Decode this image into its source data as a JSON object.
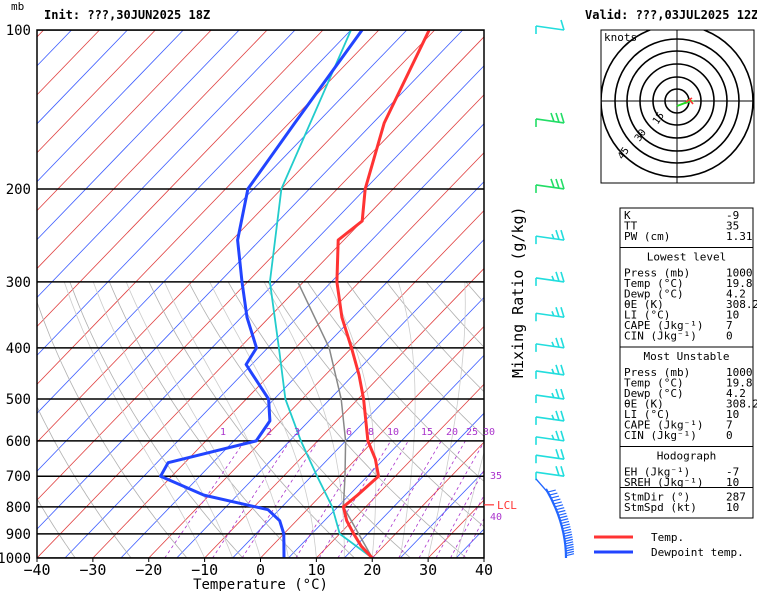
{
  "header": {
    "unit_label": "mb",
    "init": "Init: ???,30JUN2025 18Z",
    "valid": "Valid: ???,03JUL2025 12Z"
  },
  "chart_data": {
    "type": "line",
    "subtype": "skew-t log-p sounding",
    "xlabel": "Temperature (°C)",
    "ylabel": "mb",
    "pressure_levels": [
      100,
      200,
      300,
      400,
      500,
      600,
      700,
      800,
      900,
      1000
    ],
    "temperature_ticks": [
      -40,
      -30,
      -20,
      -10,
      0,
      10,
      20,
      30,
      40
    ],
    "xlim": [
      -40,
      40
    ],
    "ylim": [
      1000,
      100
    ],
    "y_scale": "log",
    "mixing_ratio": {
      "label": "Mixing Ratio (g/kg)",
      "values": [
        "1",
        "2",
        "3",
        "6",
        "8",
        "10",
        "15",
        "20",
        "25",
        "30",
        "35",
        "40"
      ]
    },
    "lcl_label": "LCL",
    "lcl_pressure": 800,
    "series": [
      {
        "name": "Temp.",
        "color": "#ff3333",
        "points": [
          [
            1000,
            20
          ],
          [
            950,
            16
          ],
          [
            900,
            12.5
          ],
          [
            850,
            9
          ],
          [
            800,
            6
          ],
          [
            760,
            6.5
          ],
          [
            700,
            7
          ],
          [
            650,
            3.5
          ],
          [
            600,
            -1
          ],
          [
            500,
            -9
          ],
          [
            450,
            -14
          ],
          [
            400,
            -20
          ],
          [
            350,
            -27
          ],
          [
            300,
            -34
          ],
          [
            250,
            -41
          ],
          [
            230,
            -40
          ],
          [
            200,
            -45
          ],
          [
            150,
            -53
          ],
          [
            100,
            -61
          ]
        ]
      },
      {
        "name": "Dewpoint temp.",
        "color": "#2244ff",
        "points": [
          [
            1000,
            4.2
          ],
          [
            900,
            0
          ],
          [
            850,
            -3
          ],
          [
            810,
            -7
          ],
          [
            760,
            -21
          ],
          [
            700,
            -32
          ],
          [
            660,
            -33
          ],
          [
            600,
            -21
          ],
          [
            550,
            -22
          ],
          [
            500,
            -26
          ],
          [
            450,
            -33
          ],
          [
            430,
            -36
          ],
          [
            400,
            -37
          ],
          [
            350,
            -44
          ],
          [
            300,
            -51
          ],
          [
            250,
            -59
          ],
          [
            200,
            -66
          ],
          [
            150,
            -69
          ],
          [
            100,
            -73
          ]
        ]
      }
    ],
    "parcel": {
      "name": "Parcel",
      "color": "#888888",
      "points": [
        [
          1000,
          20
        ],
        [
          800,
          6
        ],
        [
          700,
          1
        ],
        [
          600,
          -5
        ],
        [
          500,
          -13
        ],
        [
          400,
          -24
        ],
        [
          300,
          -41
        ]
      ]
    },
    "wind_barbs": [
      {
        "p": 100,
        "spd": 10,
        "color": "#22dddd"
      },
      {
        "p": 150,
        "spd": 30,
        "color": "#22dd66"
      },
      {
        "p": 200,
        "spd": 30,
        "color": "#22dd66"
      },
      {
        "p": 250,
        "spd": 15,
        "color": "#22dddd"
      },
      {
        "p": 300,
        "spd": 15,
        "color": "#22dddd"
      },
      {
        "p": 350,
        "spd": 15,
        "color": "#22dddd"
      },
      {
        "p": 400,
        "spd": 15,
        "color": "#22dddd"
      },
      {
        "p": 450,
        "spd": 15,
        "color": "#22dddd"
      },
      {
        "p": 500,
        "spd": 15,
        "color": "#22dddd"
      },
      {
        "p": 550,
        "spd": 15,
        "color": "#22dddd"
      },
      {
        "p": 600,
        "spd": 15,
        "color": "#22dddd"
      },
      {
        "p": 650,
        "spd": 20,
        "color": "#22dddd"
      },
      {
        "p": 700,
        "spd": 20,
        "color": "#22dddd"
      }
    ],
    "lower_barbs_color": "#2266ff"
  },
  "hodograph": {
    "title": "knots",
    "ring_labels": [
      "15",
      "30",
      "45"
    ],
    "trace_color": "#22dd22",
    "storm_color": "#ff3333"
  },
  "stats": {
    "top": [
      {
        "label": "K",
        "value": "-9"
      },
      {
        "label": "TT",
        "value": "35"
      },
      {
        "label": "PW (cm)",
        "value": "1.31"
      }
    ],
    "lowest_title": "Lowest level",
    "lowest": [
      {
        "label": "Press (mb)",
        "value": "1000"
      },
      {
        "label": "Temp (°C)",
        "value": "19.8"
      },
      {
        "label": "Dewp (°C)",
        "value": "4.2"
      },
      {
        "label": "θE (K)",
        "value": "308.2"
      },
      {
        "label": "LI (°C)",
        "value": "10"
      },
      {
        "label": "CAPE (Jkg⁻¹)",
        "value": "7"
      },
      {
        "label": "CIN (Jkg⁻¹)",
        "value": "0"
      }
    ],
    "unstable_title": "Most Unstable",
    "unstable": [
      {
        "label": "Press (mb)",
        "value": "1000"
      },
      {
        "label": "Temp (°C)",
        "value": "19.8"
      },
      {
        "label": "Dewp (°C)",
        "value": "4.2"
      },
      {
        "label": "θE (K)",
        "value": "308.2"
      },
      {
        "label": "LI (°C)",
        "value": "10"
      },
      {
        "label": "CAPE (Jkg⁻¹)",
        "value": "7"
      },
      {
        "label": "CIN (Jkg⁻¹)",
        "value": "0"
      }
    ],
    "hodo_title": "Hodograph",
    "hodo": [
      {
        "label": "EH (Jkg⁻¹)",
        "value": "-7"
      },
      {
        "label": "SREH (Jkg⁻¹)",
        "value": "10"
      },
      {
        "label": "StmDir (°)",
        "value": "287"
      },
      {
        "label": "StmSpd (kt)",
        "value": "10"
      }
    ]
  },
  "legend": [
    {
      "name": "Temp.",
      "color": "#ff3333"
    },
    {
      "name": "Dewpoint temp.",
      "color": "#2244ff"
    }
  ]
}
